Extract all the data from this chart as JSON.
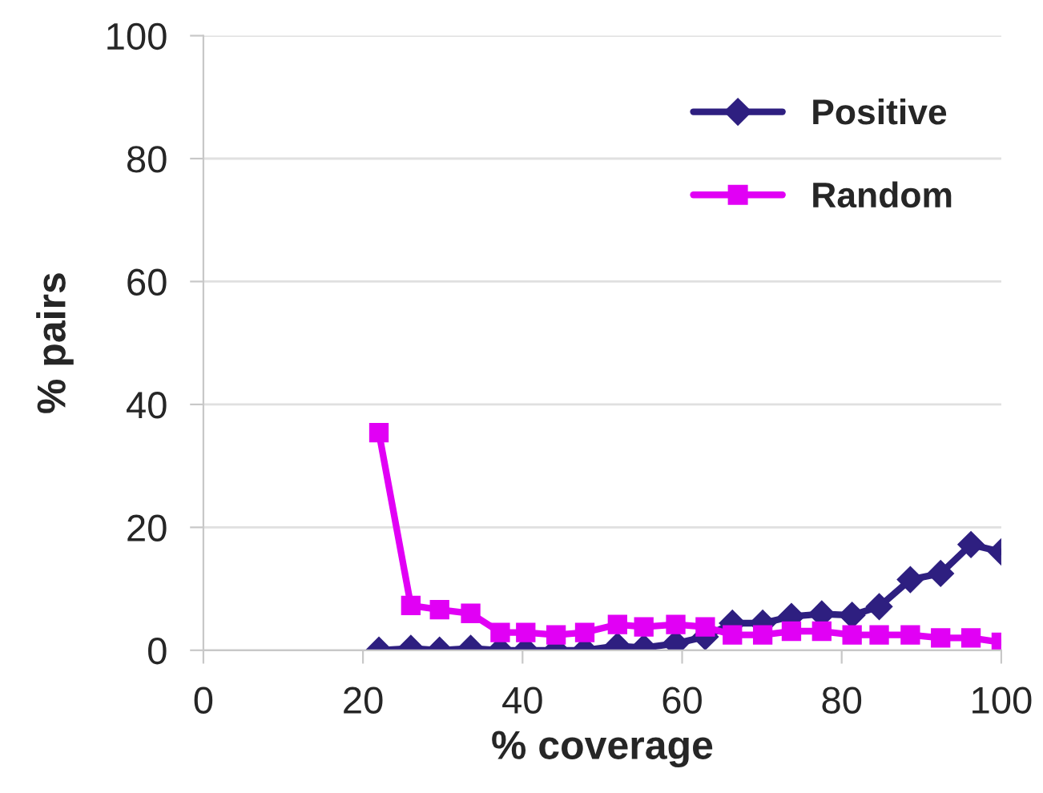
{
  "chart_data": {
    "type": "line",
    "xlabel": "% coverage",
    "ylabel": "% pairs",
    "x": [
      22,
      26,
      29.6,
      33.5,
      37.2,
      40.4,
      44.2,
      47.8,
      51.9,
      55.2,
      59.2,
      62.9,
      66.3,
      70.1,
      73.7,
      77.5,
      81.3,
      84.7,
      88.6,
      92.4,
      96.2,
      100
    ],
    "series": [
      {
        "name": "Positive",
        "color": "#2e1f80",
        "marker": "diamond",
        "values": [
          0,
          0.3,
          0,
          0.3,
          0,
          0,
          0,
          0,
          0.7,
          0.4,
          1.1,
          2.2,
          4.4,
          4.4,
          5.5,
          5.9,
          5.7,
          7.1,
          11.5,
          12.5,
          17.2,
          16.0
        ]
      },
      {
        "name": "Random",
        "color": "#e100f5",
        "marker": "square",
        "values": [
          35.4,
          7.3,
          6.6,
          6.0,
          2.9,
          2.9,
          2.5,
          2.9,
          4.2,
          3.8,
          4.2,
          3.8,
          2.5,
          2.5,
          3.1,
          3.1,
          2.5,
          2.5,
          2.5,
          2.0,
          2.0,
          1.3
        ]
      }
    ],
    "xlim": [
      0,
      100
    ],
    "xticks": [
      0,
      20,
      40,
      60,
      80,
      100
    ],
    "ylim": [
      0,
      100
    ],
    "yticks": [
      0,
      20,
      40,
      60,
      80,
      100
    ],
    "grid": "y",
    "legend": "top right",
    "line_style": "solid"
  }
}
